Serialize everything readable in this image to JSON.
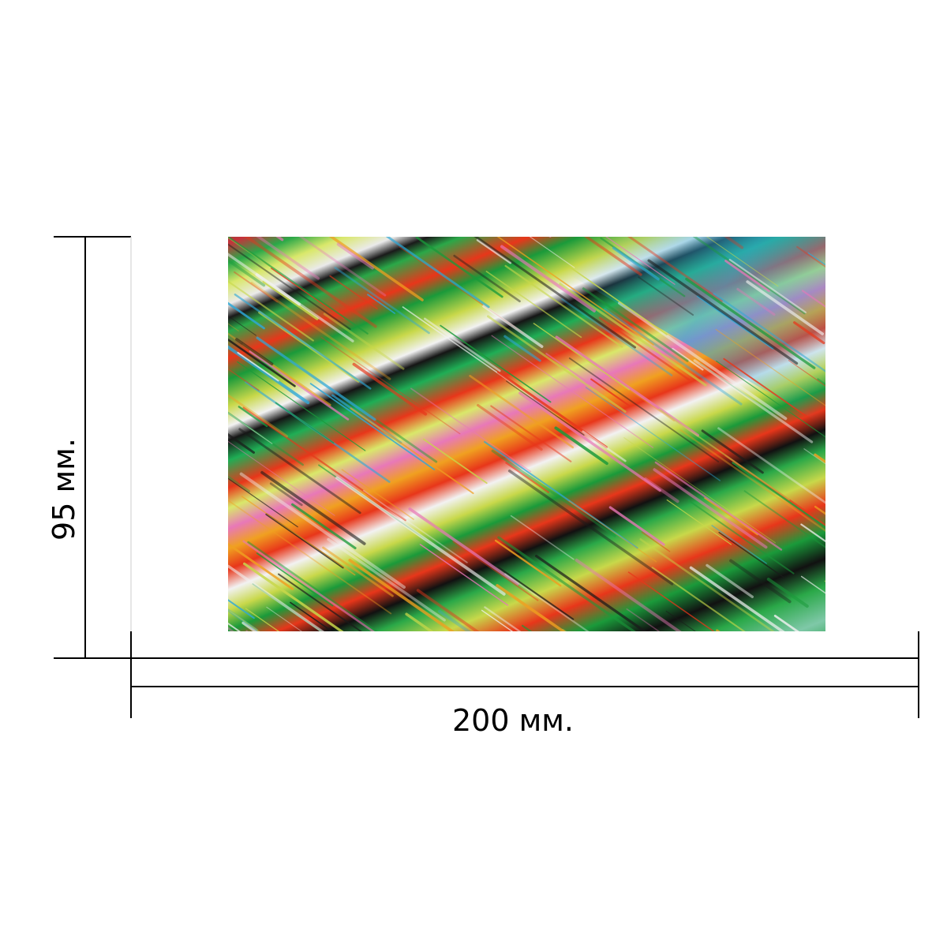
{
  "dimensions": {
    "width_label": "200 мм.",
    "height_label": "95 мм.",
    "width_mm": 200,
    "height_mm": 95
  },
  "product": {
    "image": "abstract-diagonal-streaks-pattern",
    "colors": [
      "#1a9a3a",
      "#e8361a",
      "#c8d84a",
      "#f2f2f2",
      "#1a1a1a",
      "#2ea8d8",
      "#e878b8",
      "#f0a020"
    ]
  },
  "line_color": "#000000"
}
